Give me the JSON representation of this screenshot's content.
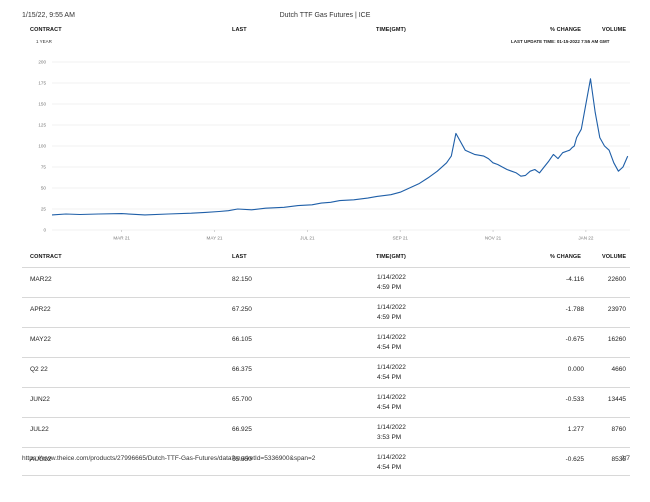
{
  "print_header": {
    "datetime": "1/15/22, 9:55 AM",
    "title": "Dutch TTF Gas Futures | ICE"
  },
  "top_columns": {
    "contract": "CONTRACT",
    "last": "LAST",
    "time": "TIME(GMT)",
    "change": "% CHANGE",
    "volume": "VOLUME"
  },
  "range_label": "1 YEAR",
  "last_update": "LAST UPDATE TIME: 01-15-2022 7:55 AM GMT",
  "colors": {
    "line": "#1f5fa8",
    "grid": "#e4e4e4",
    "divider": "#d8d8d8"
  },
  "chart_data": {
    "type": "line",
    "title": "",
    "xlabel": "",
    "ylabel": "",
    "ylim": [
      0,
      200
    ],
    "yticks": [
      0,
      25,
      50,
      75,
      100,
      125,
      150,
      175,
      200
    ],
    "xticks": [
      {
        "label": "MAR 21",
        "x": 1.5
      },
      {
        "label": "MAY 21",
        "x": 3.5
      },
      {
        "label": "JUL 21",
        "x": 5.5
      },
      {
        "label": "SEP 21",
        "x": 7.5
      },
      {
        "label": "NOV 21",
        "x": 9.5
      },
      {
        "label": "JAN 22",
        "x": 11.5
      }
    ],
    "xlim": [
      0,
      12.45
    ],
    "series": [
      {
        "name": "Dutch TTF Gas Futures",
        "x": [
          0,
          0.3,
          0.6,
          1,
          1.5,
          2,
          2.5,
          3,
          3.3,
          3.6,
          3.8,
          4,
          4.3,
          4.6,
          5,
          5.3,
          5.6,
          5.8,
          6,
          6.2,
          6.5,
          6.8,
          7,
          7.3,
          7.5,
          7.7,
          7.9,
          8.1,
          8.3,
          8.5,
          8.6,
          8.7,
          8.9,
          9.1,
          9.3,
          9.4,
          9.5,
          9.6,
          9.7,
          9.8,
          9.9,
          10,
          10.1,
          10.2,
          10.3,
          10.4,
          10.5,
          10.6,
          10.7,
          10.8,
          10.9,
          11,
          11.1,
          11.15,
          11.2,
          11.25,
          11.3,
          11.4,
          11.5,
          11.6,
          11.7,
          11.8,
          11.9,
          12,
          12.1,
          12.2,
          12.3,
          12.4
        ],
        "values": [
          18,
          19,
          18.5,
          19,
          19.5,
          18,
          19,
          20,
          21,
          22,
          23,
          25,
          24,
          26,
          27,
          29,
          30,
          32,
          33,
          35,
          36,
          38,
          40,
          42,
          45,
          50,
          55,
          62,
          70,
          80,
          88,
          115,
          95,
          90,
          88,
          85,
          80,
          78,
          75,
          72,
          70,
          68,
          64,
          65,
          70,
          72,
          68,
          75,
          82,
          90,
          85,
          92,
          94,
          95,
          98,
          100,
          110,
          120,
          150,
          180,
          140,
          110,
          100,
          95,
          80,
          70,
          75,
          88
        ]
      }
    ]
  },
  "table": {
    "headers": {
      "contract": "CONTRACT",
      "last": "LAST",
      "time": "TIME(GMT)",
      "change": "% CHANGE",
      "volume": "VOLUME"
    },
    "rows": [
      {
        "contract": "MAR22",
        "last": "82.150",
        "date": "1/14/2022",
        "time": "4:59 PM",
        "change": "-4.116",
        "volume": "22600"
      },
      {
        "contract": "APR22",
        "last": "67.250",
        "date": "1/14/2022",
        "time": "4:59 PM",
        "change": "-1.788",
        "volume": "23970"
      },
      {
        "contract": "MAY22",
        "last": "66.105",
        "date": "1/14/2022",
        "time": "4:54 PM",
        "change": "-0.675",
        "volume": "16260"
      },
      {
        "contract": "Q2 22",
        "last": "66.375",
        "date": "1/14/2022",
        "time": "4:54 PM",
        "change": "0.000",
        "volume": "4660"
      },
      {
        "contract": "JUN22",
        "last": "65.700",
        "date": "1/14/2022",
        "time": "4:54 PM",
        "change": "-0.533",
        "volume": "13445"
      },
      {
        "contract": "JUL22",
        "last": "66.925",
        "date": "1/14/2022",
        "time": "3:53 PM",
        "change": "1.277",
        "volume": "8760"
      },
      {
        "contract": "AUG22",
        "last": "65.550",
        "date": "1/14/2022",
        "time": "4:54 PM",
        "change": "-0.625",
        "volume": "8535"
      }
    ]
  },
  "footer": {
    "url": "https://www.theice.com/products/27996665/Dutch-TTF-Gas-Futures/data?marketId=5336900&span=2",
    "page": "2/7"
  }
}
